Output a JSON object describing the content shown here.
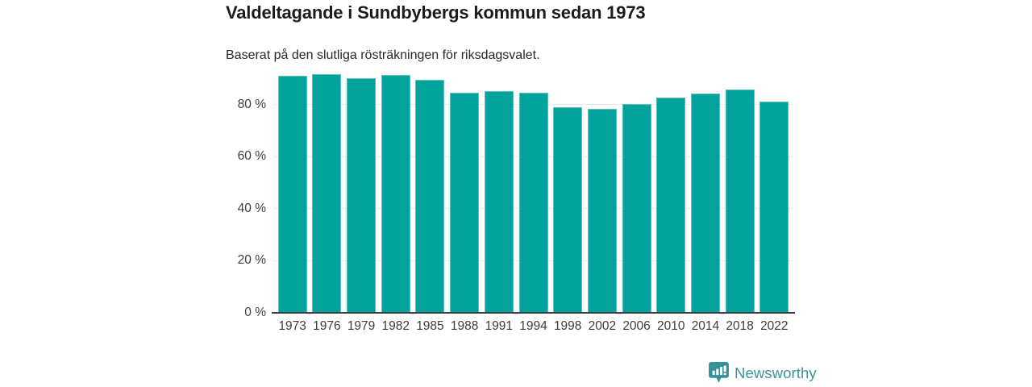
{
  "header": {
    "title": "Valdeltagande i Sundbybergs kommun sedan 1973",
    "subtitle": "Baserat på den slutliga rösträkningen för riksdagsvalet."
  },
  "chart_data": {
    "type": "bar",
    "title": "Valdeltagande i Sundbybergs kommun sedan 1973",
    "subtitle": "Baserat på den slutliga rösträkningen för riksdagsvalet.",
    "categories": [
      "1973",
      "1976",
      "1979",
      "1982",
      "1985",
      "1988",
      "1991",
      "1994",
      "1998",
      "2002",
      "2006",
      "2010",
      "2014",
      "2018",
      "2022"
    ],
    "values": [
      90.9,
      91.8,
      90.2,
      91.4,
      89.5,
      84.4,
      85.2,
      84.5,
      79.0,
      78.4,
      80.3,
      82.7,
      84.1,
      85.7,
      81.2
    ],
    "xlabel": "",
    "ylabel": "",
    "ylim": [
      0,
      100
    ],
    "yticks": [
      0,
      20,
      40,
      60,
      80
    ],
    "yticklabels": [
      "0 %",
      "20 %",
      "40 %",
      "60 %",
      "80 %"
    ],
    "grid": true,
    "legend": "none",
    "unit": "%"
  },
  "colors": {
    "bar": "#01a39b",
    "grid": "#e9e9e9",
    "axis": "#3f3f3f",
    "tick_text": "#3d3d3d",
    "title_text": "#1b1b1b",
    "brand": "#3e929c",
    "background": "#ffffff"
  },
  "footer": {
    "brand": "Newsworthy"
  }
}
